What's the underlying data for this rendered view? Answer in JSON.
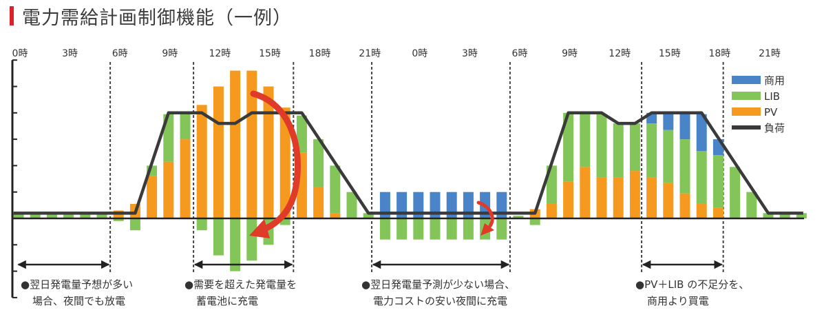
{
  "title": "電力需給計画制御機能（一例）",
  "colors": {
    "commercial": "#4a84c8",
    "lib": "#84c55a",
    "pv": "#f59a1e",
    "load": "#3a3a3a",
    "accent": "#d9222a",
    "arrow": "#e03a28"
  },
  "chart_data": {
    "type": "bar",
    "stacked": true,
    "title": "電力需給計画制御機能（一例）",
    "x_unit": "hour",
    "x_tick_hours": [
      0,
      3,
      6,
      9,
      12,
      15,
      18,
      21,
      24,
      27,
      30,
      33,
      36,
      39,
      42,
      45
    ],
    "x_tick_labels": [
      "0時",
      "3時",
      "6時",
      "9時",
      "12時",
      "15時",
      "18時",
      "21時",
      "0時",
      "3時",
      "6時",
      "9時",
      "12時",
      "15時",
      "18時",
      "21時"
    ],
    "ylim": [
      -3,
      6
    ],
    "y_tick_labels_shown": false,
    "legend": {
      "placement": "top-right",
      "entries": [
        "商用",
        "LIB",
        "PV",
        "負荷"
      ]
    },
    "series": [
      {
        "name": "PV",
        "color": "#f59a1e",
        "values": [
          0,
          0,
          0,
          0,
          0,
          0,
          0.3,
          0.55,
          1.6,
          2.15,
          3.0,
          4.3,
          5.0,
          5.6,
          5.6,
          5.0,
          4.2,
          2.5,
          1.2,
          0.2,
          0,
          0,
          0,
          0,
          0,
          0,
          0,
          0,
          0,
          0,
          0,
          0.35,
          0.55,
          1.4,
          1.95,
          1.55,
          1.55,
          1.8,
          1.55,
          1.35,
          0.95,
          0.55,
          0.4,
          0,
          0,
          0,
          0,
          0
        ]
      },
      {
        "name": "LIB",
        "color": "#84c55a",
        "values": [
          0.2,
          0.2,
          0.2,
          0.2,
          0.2,
          0.2,
          -0.1,
          -0.45,
          0.4,
          1.8,
          1.0,
          -0.45,
          -1.4,
          -2.0,
          -1.6,
          -1.0,
          -0.25,
          1.4,
          1.8,
          1.8,
          1.0,
          0.2,
          -0.8,
          -0.8,
          -0.8,
          -0.8,
          -0.8,
          -0.8,
          -0.8,
          -0.8,
          0.1,
          -0.25,
          1.45,
          2.6,
          2.0,
          2.4,
          2.05,
          1.8,
          2.05,
          2.0,
          2.05,
          2.0,
          2.0,
          1.95,
          1.0,
          0.2,
          0.2,
          0.2
        ]
      },
      {
        "name": "商用",
        "color": "#4a84c8",
        "values": [
          0,
          0,
          0,
          0,
          0,
          0,
          0,
          0,
          0,
          0,
          0,
          0,
          0,
          0,
          0,
          0,
          0,
          0,
          0,
          0,
          0,
          0,
          1.0,
          1.0,
          1.0,
          1.0,
          1.0,
          1.0,
          1.0,
          1.0,
          0,
          0,
          0,
          0,
          0,
          0,
          0,
          0,
          0.4,
          0.6,
          1.0,
          1.4,
          0.6,
          0,
          0,
          0,
          0,
          0
        ]
      }
    ],
    "load": {
      "name": "負荷",
      "color": "#3a3a3a",
      "points": [
        [
          -0.3,
          0.2
        ],
        [
          7,
          0.2
        ],
        [
          9,
          4
        ],
        [
          11,
          4
        ],
        [
          12,
          3.6
        ],
        [
          13,
          3.6
        ],
        [
          14,
          4
        ],
        [
          17,
          4
        ],
        [
          21,
          0.2
        ],
        [
          31,
          0.2
        ],
        [
          33,
          4
        ],
        [
          35,
          4
        ],
        [
          36,
          3.6
        ],
        [
          37,
          3.6
        ],
        [
          38,
          4
        ],
        [
          41,
          4
        ],
        [
          45,
          0.2
        ],
        [
          47.1,
          0.2
        ]
      ]
    },
    "period_markers_hours": [
      5.5,
      10.5,
      16.5,
      21.2,
      29.5,
      37.4,
      42.3
    ],
    "period_spans_hours": [
      [
        -0.1,
        5.5
      ],
      [
        10.5,
        16.5
      ],
      [
        21.2,
        29.5
      ],
      [
        37.4,
        42.3
      ]
    ],
    "annotations": [
      {
        "line1": "●翌日発電量予想が多い",
        "line2": "場合、夜間でも放電"
      },
      {
        "line1": "●需要を超えた発電量を",
        "line2": "蓄電池に充電"
      },
      {
        "line1": "●翌日発電量予測が少ない場合、",
        "line2": "電力コストの安い夜間に充電"
      },
      {
        "line1": "●PV＋LIB の不足分を、",
        "line2": "商用より買電"
      }
    ]
  }
}
